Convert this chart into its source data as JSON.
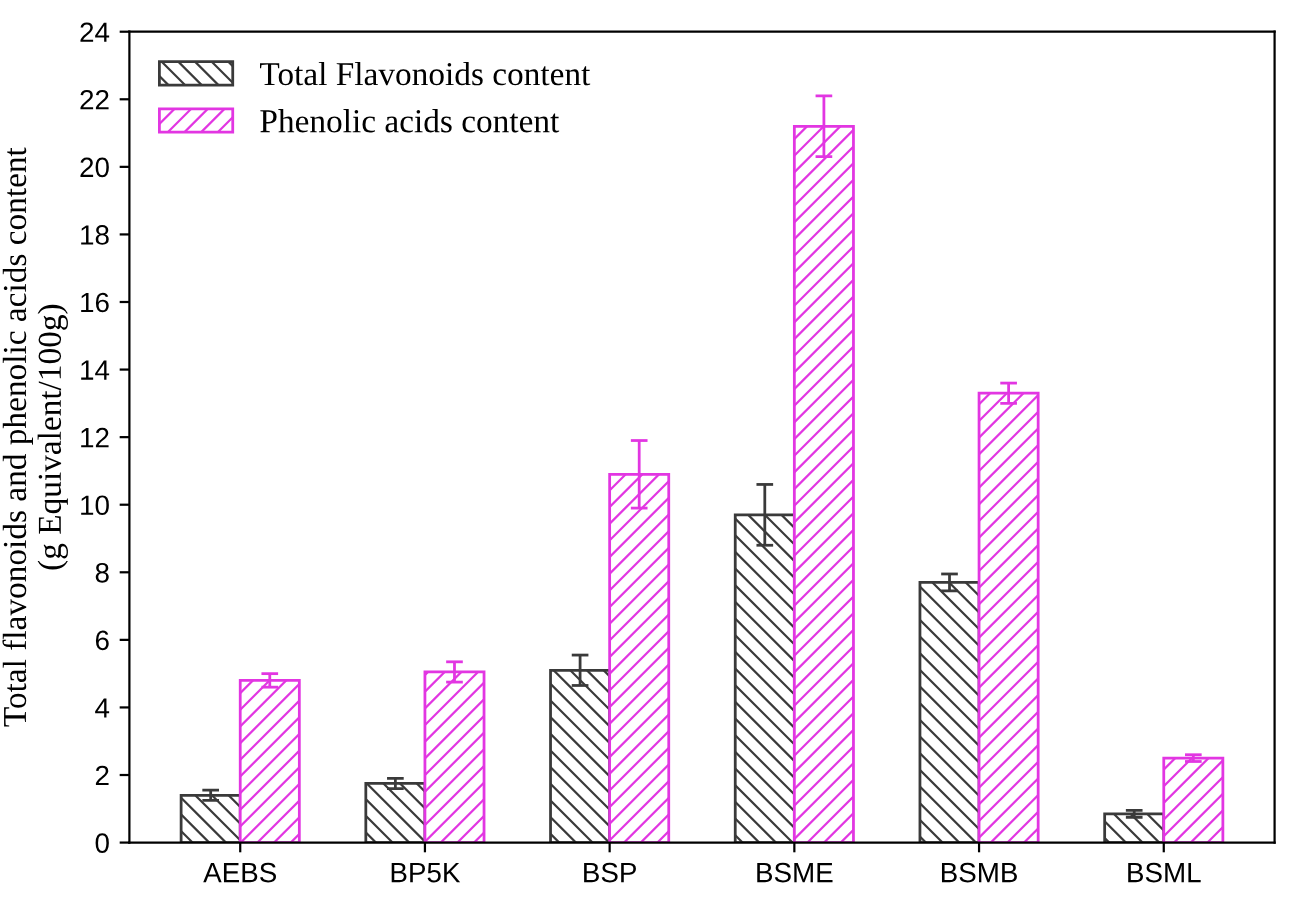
{
  "chart_data": {
    "type": "bar",
    "ylabel": "Total flavonoids and phenolic acids content\n(g Equivalent/100g)",
    "categories": [
      "AEBS",
      "BP5K",
      "BSP",
      "BSME",
      "BSMB",
      "BSML"
    ],
    "series": [
      {
        "name": "Total Flavonoids content",
        "color": "#3a3a3a",
        "values": [
          1.4,
          1.75,
          5.1,
          9.7,
          7.7,
          0.85
        ],
        "errors": [
          0.15,
          0.15,
          0.45,
          0.9,
          0.25,
          0.1
        ]
      },
      {
        "name": "Phenolic acids content",
        "color": "#e236e2",
        "values": [
          4.8,
          5.05,
          10.9,
          21.2,
          13.3,
          2.5
        ],
        "errors": [
          0.2,
          0.3,
          1.0,
          0.9,
          0.3,
          0.1
        ]
      }
    ],
    "ylim": [
      0,
      24
    ],
    "yticks": [
      0,
      2,
      4,
      6,
      8,
      10,
      12,
      14,
      16,
      18,
      20,
      22,
      24
    ],
    "grid": false,
    "legend": "top left"
  }
}
